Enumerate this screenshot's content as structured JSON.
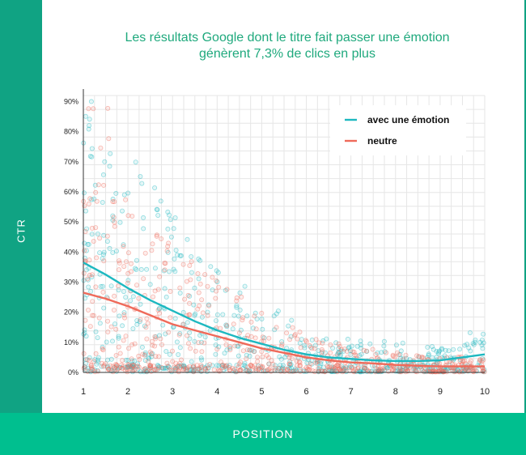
{
  "title_line1": "Les résultats Google dont le titre fait passer une émotion",
  "title_line2": "génèrent 7,3% de clics en plus",
  "ylabel": "CTR",
  "xlabel": "POSITION",
  "colors": {
    "emotion": "#1db8c0",
    "neutre": "#ef6a5a",
    "sidebar": "#10a383",
    "bottombar": "#00bf8f",
    "title": "#1fa97d"
  },
  "chart_data": {
    "type": "scatter",
    "xlim": [
      1,
      10
    ],
    "ylim": [
      0,
      92
    ],
    "x_ticks": [
      "1",
      "2",
      "3",
      "4",
      "5",
      "6",
      "7",
      "8",
      "9",
      "10"
    ],
    "y_ticks": [
      "0%",
      "10%",
      "20%",
      "30%",
      "40%",
      "50%",
      "60%",
      "70%",
      "80%",
      "90%"
    ],
    "grid": true,
    "legend_position": "top-right",
    "series": [
      {
        "name": "avec une émotion",
        "color": "#1db8c0",
        "trend": [
          [
            1,
            36.5
          ],
          [
            1.5,
            32.5
          ],
          [
            2,
            28
          ],
          [
            2.5,
            24
          ],
          [
            3,
            20.5
          ],
          [
            3.5,
            17
          ],
          [
            4,
            14
          ],
          [
            4.5,
            11.5
          ],
          [
            5,
            9.5
          ],
          [
            5.5,
            7.5
          ],
          [
            6,
            6
          ],
          [
            6.5,
            5
          ],
          [
            7,
            4.5
          ],
          [
            7.5,
            4
          ],
          [
            8,
            3.8
          ],
          [
            8.5,
            3.8
          ],
          [
            9,
            4
          ],
          [
            9.5,
            5
          ],
          [
            10,
            6
          ]
        ]
      },
      {
        "name": "neutre",
        "color": "#ef6a5a",
        "trend": [
          [
            1,
            26.5
          ],
          [
            1.5,
            24.5
          ],
          [
            2,
            22
          ],
          [
            2.5,
            19
          ],
          [
            3,
            16
          ],
          [
            3.5,
            14
          ],
          [
            4,
            12
          ],
          [
            4.5,
            10
          ],
          [
            5,
            8
          ],
          [
            5.5,
            6.5
          ],
          [
            6,
            5
          ],
          [
            6.5,
            4
          ],
          [
            7,
            3.3
          ],
          [
            7.5,
            3
          ],
          [
            8,
            2.5
          ],
          [
            8.5,
            2.2
          ],
          [
            9,
            2
          ],
          [
            9.5,
            2
          ],
          [
            10,
            2
          ]
        ]
      }
    ]
  }
}
